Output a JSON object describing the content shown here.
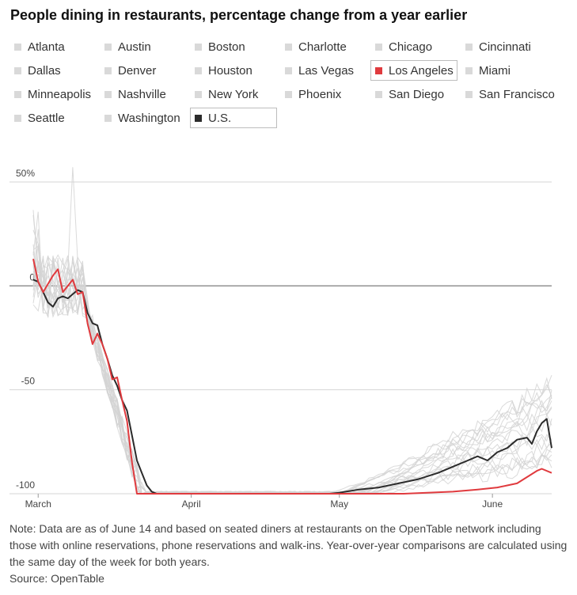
{
  "title": "People dining in restaurants, percentage change from a year earlier",
  "note": "Note: Data are as of June 14 and based on seated diners at restaurants on the OpenTable network including those with online reservations, phone reservations and walk-ins. Year-over-year comparisons are calculated using the same day of the week for both years.",
  "source": "Source: OpenTable",
  "colors": {
    "highlight": "#e03a3e",
    "us": "#2b2b2b",
    "other": "#d9d9d9",
    "grid": "#d6d6d6",
    "zero": "#888888"
  },
  "legend": [
    {
      "label": "Atlanta",
      "state": "off"
    },
    {
      "label": "Austin",
      "state": "off"
    },
    {
      "label": "Boston",
      "state": "off"
    },
    {
      "label": "Charlotte",
      "state": "off"
    },
    {
      "label": "Chicago",
      "state": "off"
    },
    {
      "label": "Cincinnati",
      "state": "off"
    },
    {
      "label": "Dallas",
      "state": "off"
    },
    {
      "label": "Denver",
      "state": "off"
    },
    {
      "label": "Houston",
      "state": "off"
    },
    {
      "label": "Las Vegas",
      "state": "off"
    },
    {
      "label": "Los Angeles",
      "state": "highlight"
    },
    {
      "label": "Miami",
      "state": "off"
    },
    {
      "label": "Minneapolis",
      "state": "off"
    },
    {
      "label": "Nashville",
      "state": "off"
    },
    {
      "label": "New York",
      "state": "off"
    },
    {
      "label": "Phoenix",
      "state": "off"
    },
    {
      "label": "San Diego",
      "state": "off"
    },
    {
      "label": "San Francisco",
      "state": "off"
    },
    {
      "label": "Seattle",
      "state": "off"
    },
    {
      "label": "Washington",
      "state": "off"
    },
    {
      "label": "U.S.",
      "state": "us"
    }
  ],
  "chart_data": {
    "type": "line",
    "title": "People dining in restaurants, percentage change from a year earlier",
    "x_range_days": [
      0,
      105
    ],
    "x_ticks": [
      {
        "label": "March",
        "day": 1
      },
      {
        "label": "April",
        "day": 32
      },
      {
        "label": "May",
        "day": 62
      },
      {
        "label": "June",
        "day": 93
      }
    ],
    "ylim": [
      -100,
      55
    ],
    "y_ticks": [
      {
        "label": "50%",
        "value": 50
      },
      {
        "label": "0",
        "value": 0
      },
      {
        "label": "-50",
        "value": -50
      },
      {
        "label": "-100",
        "value": -100
      }
    ],
    "series": [
      {
        "name": "U.S.",
        "role": "us",
        "points": [
          [
            0,
            3
          ],
          [
            1,
            2
          ],
          [
            2,
            -3
          ],
          [
            3,
            -8
          ],
          [
            4,
            -10
          ],
          [
            5,
            -6
          ],
          [
            6,
            -5
          ],
          [
            7,
            -6
          ],
          [
            8,
            -4
          ],
          [
            9,
            -2
          ],
          [
            10,
            -3
          ],
          [
            11,
            -13
          ],
          [
            12,
            -18
          ],
          [
            13,
            -19
          ],
          [
            14,
            -28
          ],
          [
            15,
            -35
          ],
          [
            16,
            -43
          ],
          [
            17,
            -48
          ],
          [
            18,
            -55
          ],
          [
            19,
            -60
          ],
          [
            20,
            -72
          ],
          [
            21,
            -84
          ],
          [
            22,
            -90
          ],
          [
            23,
            -96
          ],
          [
            24,
            -99
          ],
          [
            25,
            -100
          ],
          [
            30,
            -100
          ],
          [
            40,
            -100
          ],
          [
            50,
            -100
          ],
          [
            60,
            -100
          ],
          [
            62,
            -99.5
          ],
          [
            66,
            -98
          ],
          [
            70,
            -97
          ],
          [
            74,
            -95
          ],
          [
            78,
            -93
          ],
          [
            82,
            -90
          ],
          [
            86,
            -86
          ],
          [
            88,
            -84
          ],
          [
            90,
            -82
          ],
          [
            92,
            -84
          ],
          [
            94,
            -80
          ],
          [
            96,
            -78
          ],
          [
            98,
            -74
          ],
          [
            100,
            -73
          ],
          [
            101,
            -76
          ],
          [
            102,
            -70
          ],
          [
            103,
            -66
          ],
          [
            104,
            -64
          ],
          [
            105,
            -78
          ]
        ]
      },
      {
        "name": "Los Angeles",
        "role": "highlight",
        "points": [
          [
            0,
            13
          ],
          [
            1,
            2
          ],
          [
            2,
            -3
          ],
          [
            3,
            1
          ],
          [
            4,
            5
          ],
          [
            5,
            8
          ],
          [
            6,
            -3
          ],
          [
            7,
            0
          ],
          [
            8,
            3
          ],
          [
            9,
            -4
          ],
          [
            10,
            -3
          ],
          [
            11,
            -18
          ],
          [
            12,
            -28
          ],
          [
            13,
            -23
          ],
          [
            14,
            -28
          ],
          [
            15,
            -35
          ],
          [
            16,
            -45
          ],
          [
            17,
            -44
          ],
          [
            18,
            -55
          ],
          [
            19,
            -65
          ],
          [
            20,
            -85
          ],
          [
            21,
            -100
          ],
          [
            30,
            -100
          ],
          [
            60,
            -100
          ],
          [
            75,
            -100
          ],
          [
            85,
            -99
          ],
          [
            90,
            -98
          ],
          [
            94,
            -97
          ],
          [
            96,
            -96
          ],
          [
            98,
            -95
          ],
          [
            100,
            -92
          ],
          [
            102,
            -89
          ],
          [
            103,
            -88
          ],
          [
            105,
            -90
          ]
        ]
      }
    ]
  }
}
